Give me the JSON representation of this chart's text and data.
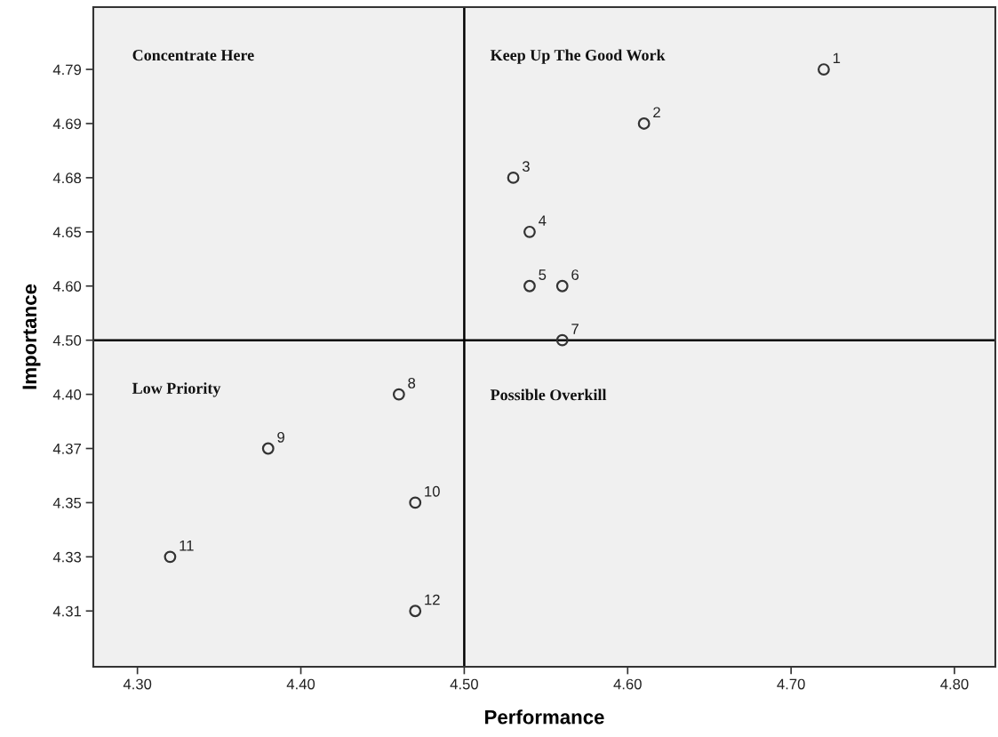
{
  "chart_data": {
    "type": "scatter",
    "orientation": "horizontal",
    "xlabel": "Performance",
    "ylabel": "Importance",
    "categories": [
      "4.79",
      "4.69",
      "4.68",
      "4.65",
      "4.60",
      "4.50",
      "4.40",
      "4.37",
      "4.35",
      "4.33",
      "4.31"
    ],
    "series": [
      {
        "color": "#333333",
        "values": [
          4.72,
          4.61,
          4.53,
          4.54,
          4.54,
          4.56,
          4.46,
          4.38,
          4.47,
          4.32,
          4.47
        ]
      },
      {
        "color": "#333333",
        "values": [
          null,
          null,
          null,
          null,
          4.56,
          null,
          null,
          null,
          null,
          null,
          null
        ]
      }
    ],
    "xlim": [
      4.273,
      4.825
    ],
    "xticks": [
      {
        "value": 4.3,
        "label": "4.30"
      },
      {
        "value": 4.4,
        "label": "4.40"
      },
      {
        "value": 4.5,
        "label": "4.50"
      },
      {
        "value": 4.6,
        "label": "4.60"
      },
      {
        "value": 4.7,
        "label": "4.70"
      },
      {
        "value": 4.8,
        "label": "4.80"
      }
    ],
    "ref_lines": [
      {
        "axis": "x",
        "value": 4.5,
        "color": "#000000"
      },
      {
        "axis": "y",
        "value": "4.50",
        "color": "#000000"
      }
    ],
    "annotations": [
      "Concentrate Here",
      "Keep Up The Good Work",
      "Low Priority",
      "Possible Overkill",
      {
        "text": "1",
        "x": 4.72,
        "y": "4.79"
      },
      {
        "text": "2",
        "x": 4.61,
        "y": "4.69"
      },
      {
        "text": "3",
        "x": 4.53,
        "y": "4.68"
      },
      {
        "text": "4",
        "x": 4.54,
        "y": "4.65"
      },
      {
        "text": "5",
        "x": 4.54,
        "y": "4.60"
      },
      {
        "text": "6",
        "x": 4.56,
        "y": "4.60"
      },
      {
        "text": "7",
        "x": 4.56,
        "y": "4.50"
      },
      {
        "text": "8",
        "x": 4.46,
        "y": "4.40"
      },
      {
        "text": "9",
        "x": 4.38,
        "y": "4.37"
      },
      {
        "text": "10",
        "x": 4.47,
        "y": "4.35"
      },
      {
        "text": "11",
        "x": 4.32,
        "y": "4.33"
      },
      {
        "text": "12",
        "x": 4.47,
        "y": "4.31"
      }
    ],
    "marker": "circle",
    "grid": false,
    "legend": false
  }
}
